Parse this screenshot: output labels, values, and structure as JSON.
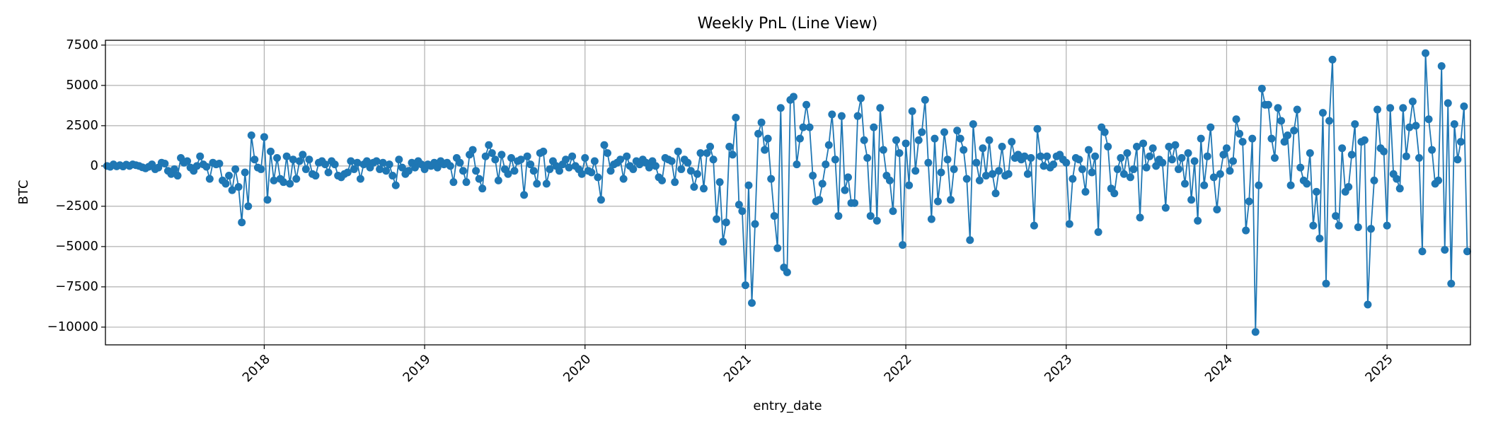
{
  "chart_data": {
    "type": "line",
    "title": "Weekly PnL (Line View)",
    "xlabel": "entry_date",
    "ylabel": "BTC",
    "color": "#1f77b4",
    "grid": true,
    "xlim": [
      2017.01,
      2025.52
    ],
    "xticks": [
      2018,
      2019,
      2020,
      2021,
      2022,
      2023,
      2024,
      2025
    ],
    "ylim": [
      -11100,
      7800
    ],
    "yticks": [
      {
        "value": -10000,
        "label": "−10000"
      },
      {
        "value": -7500,
        "label": "−7500"
      },
      {
        "value": -5000,
        "label": "−5000"
      },
      {
        "value": -2500,
        "label": "−2500"
      },
      0,
      2500,
      5000,
      7500
    ],
    "x": [
      2017.02,
      2017.04,
      2017.06,
      2017.08,
      2017.1,
      2017.12,
      2017.14,
      2017.16,
      2017.18,
      2017.2,
      2017.22,
      2017.24,
      2017.26,
      2017.28,
      2017.3,
      2017.32,
      2017.34,
      2017.36,
      2017.38,
      2017.4,
      2017.42,
      2017.44,
      2017.46,
      2017.48,
      2017.5,
      2017.52,
      2017.54,
      2017.56,
      2017.58,
      2017.6,
      2017.62,
      2017.64,
      2017.66,
      2017.68,
      2017.7,
      2017.72,
      2017.74,
      2017.76,
      2017.78,
      2017.8,
      2017.82,
      2017.84,
      2017.86,
      2017.88,
      2017.9,
      2017.92,
      2017.94,
      2017.96,
      2017.98,
      2018,
      2018.02,
      2018.04,
      2018.06,
      2018.08,
      2018.1,
      2018.12,
      2018.14,
      2018.16,
      2018.18,
      2018.2,
      2018.22,
      2018.24,
      2018.26,
      2018.28,
      2018.3,
      2018.32,
      2018.34,
      2018.36,
      2018.38,
      2018.4,
      2018.42,
      2018.44,
      2018.46,
      2018.48,
      2018.5,
      2018.52,
      2018.54,
      2018.56,
      2018.58,
      2018.6,
      2018.62,
      2018.64,
      2018.66,
      2018.68,
      2018.7,
      2018.72,
      2018.74,
      2018.76,
      2018.78,
      2018.8,
      2018.82,
      2018.84,
      2018.86,
      2018.88,
      2018.9,
      2018.92,
      2018.94,
      2018.96,
      2018.98,
      2019,
      2019.02,
      2019.04,
      2019.06,
      2019.08,
      2019.1,
      2019.12,
      2019.14,
      2019.16,
      2019.18,
      2019.2,
      2019.22,
      2019.24,
      2019.26,
      2019.28,
      2019.3,
      2019.32,
      2019.34,
      2019.36,
      2019.38,
      2019.4,
      2019.42,
      2019.44,
      2019.46,
      2019.48,
      2019.5,
      2019.52,
      2019.54,
      2019.56,
      2019.58,
      2019.6,
      2019.62,
      2019.64,
      2019.66,
      2019.68,
      2019.7,
      2019.72,
      2019.74,
      2019.76,
      2019.78,
      2019.8,
      2019.82,
      2019.84,
      2019.86,
      2019.88,
      2019.9,
      2019.92,
      2019.94,
      2019.96,
      2019.98,
      2020,
      2020.02,
      2020.04,
      2020.06,
      2020.08,
      2020.1,
      2020.12,
      2020.14,
      2020.16,
      2020.18,
      2020.2,
      2020.22,
      2020.24,
      2020.26,
      2020.28,
      2020.3,
      2020.32,
      2020.34,
      2020.36,
      2020.38,
      2020.4,
      2020.42,
      2020.44,
      2020.46,
      2020.48,
      2020.5,
      2020.52,
      2020.54,
      2020.56,
      2020.58,
      2020.6,
      2020.62,
      2020.64,
      2020.66,
      2020.68,
      2020.7,
      2020.72,
      2020.74,
      2020.76,
      2020.78,
      2020.8,
      2020.82,
      2020.84,
      2020.86,
      2020.88,
      2020.9,
      2020.92,
      2020.94,
      2020.96,
      2020.98,
      2021,
      2021.02,
      2021.04,
      2021.06,
      2021.08,
      2021.1,
      2021.12,
      2021.14,
      2021.16,
      2021.18,
      2021.2,
      2021.22,
      2021.24,
      2021.26,
      2021.28,
      2021.3,
      2021.32,
      2021.34,
      2021.36,
      2021.38,
      2021.4,
      2021.42,
      2021.44,
      2021.46,
      2021.48,
      2021.5,
      2021.52,
      2021.54,
      2021.56,
      2021.58,
      2021.6,
      2021.62,
      2021.64,
      2021.66,
      2021.68,
      2021.7,
      2021.72,
      2021.74,
      2021.76,
      2021.78,
      2021.8,
      2021.82,
      2021.84,
      2021.86,
      2021.88,
      2021.9,
      2021.92,
      2021.94,
      2021.96,
      2021.98,
      2022,
      2022.02,
      2022.04,
      2022.06,
      2022.08,
      2022.1,
      2022.12,
      2022.14,
      2022.16,
      2022.18,
      2022.2,
      2022.22,
      2022.24,
      2022.26,
      2022.28,
      2022.3,
      2022.32,
      2022.34,
      2022.36,
      2022.38,
      2022.4,
      2022.42,
      2022.44,
      2022.46,
      2022.48,
      2022.5,
      2022.52,
      2022.54,
      2022.56,
      2022.58,
      2022.6,
      2022.62,
      2022.64,
      2022.66,
      2022.68,
      2022.7,
      2022.72,
      2022.74,
      2022.76,
      2022.78,
      2022.8,
      2022.82,
      2022.84,
      2022.86,
      2022.88,
      2022.9,
      2022.92,
      2022.94,
      2022.96,
      2022.98,
      2023,
      2023.02,
      2023.04,
      2023.06,
      2023.08,
      2023.1,
      2023.12,
      2023.14,
      2023.16,
      2023.18,
      2023.2,
      2023.22,
      2023.24,
      2023.26,
      2023.28,
      2023.3,
      2023.32,
      2023.34,
      2023.36,
      2023.38,
      2023.4,
      2023.42,
      2023.44,
      2023.46,
      2023.48,
      2023.5,
      2023.52,
      2023.54,
      2023.56,
      2023.58,
      2023.6,
      2023.62,
      2023.64,
      2023.66,
      2023.68,
      2023.7,
      2023.72,
      2023.74,
      2023.76,
      2023.78,
      2023.8,
      2023.82,
      2023.84,
      2023.86,
      2023.88,
      2023.9,
      2023.92,
      2023.94,
      2023.96,
      2023.98,
      2024,
      2024.02,
      2024.04,
      2024.06,
      2024.08,
      2024.1,
      2024.12,
      2024.14,
      2024.16,
      2024.18,
      2024.2,
      2024.22,
      2024.24,
      2024.26,
      2024.28,
      2024.3,
      2024.32,
      2024.34,
      2024.36,
      2024.38,
      2024.4,
      2024.42,
      2024.44,
      2024.46,
      2024.48,
      2024.5,
      2024.52,
      2024.54,
      2024.56,
      2024.58,
      2024.6,
      2024.62,
      2024.64,
      2024.66,
      2024.68,
      2024.7,
      2024.72,
      2024.74,
      2024.76,
      2024.78,
      2024.8,
      2024.82,
      2024.84,
      2024.86,
      2024.88,
      2024.9,
      2024.92,
      2024.94,
      2024.96,
      2024.98,
      2025,
      2025.02,
      2025.04,
      2025.06,
      2025.08,
      2025.1,
      2025.12,
      2025.14,
      2025.16,
      2025.18,
      2025.2,
      2025.22,
      2025.24,
      2025.26,
      2025.28,
      2025.3,
      2025.32,
      2025.34,
      2025.36,
      2025.38,
      2025.4,
      2025.42,
      2025.44,
      2025.46,
      2025.48,
      2025.5
    ],
    "values": [
      0,
      -50,
      100,
      -20,
      50,
      -30,
      80,
      0,
      100,
      50,
      0,
      -80,
      -150,
      -50,
      100,
      -200,
      -100,
      200,
      150,
      -300,
      -500,
      -200,
      -600,
      500,
      200,
      300,
      -100,
      -300,
      0,
      600,
      100,
      -50,
      -800,
      200,
      100,
      150,
      -900,
      -1100,
      -600,
      -1500,
      -200,
      -1300,
      -3500,
      -400,
      -2500,
      1900,
      400,
      -100,
      -200,
      1800,
      -2100,
      900,
      -900,
      500,
      -800,
      -1000,
      600,
      -1100,
      400,
      -800,
      300,
      700,
      -200,
      400,
      -500,
      -600,
      200,
      300,
      100,
      -400,
      300,
      100,
      -600,
      -700,
      -500,
      -400,
      300,
      -200,
      200,
      -800,
      100,
      300,
      -100,
      200,
      300,
      -200,
      200,
      -300,
      100,
      -600,
      -1200,
      400,
      -100,
      -500,
      -300,
      200,
      -100,
      300,
      100,
      -200,
      100,
      0,
      200,
      -100,
      300,
      100,
      200,
      0,
      -1000,
      500,
      200,
      -300,
      -1000,
      700,
      1000,
      -300,
      -800,
      -1400,
      600,
      1300,
      800,
      400,
      -900,
      700,
      -200,
      -500,
      500,
      -300,
      300,
      400,
      -1800,
      600,
      100,
      -300,
      -1100,
      800,
      900,
      -1100,
      -200,
      300,
      0,
      -300,
      100,
      400,
      -100,
      600,
      0,
      -200,
      -500,
      500,
      -300,
      -400,
      300,
      -700,
      -2100,
      1300,
      800,
      -300,
      100,
      200,
      400,
      -800,
      600,
      0,
      -200,
      300,
      100,
      400,
      200,
      -100,
      300,
      0,
      -700,
      -900,
      500,
      400,
      300,
      -1000,
      900,
      -200,
      400,
      200,
      -300,
      -1300,
      -500,
      800,
      -1400,
      800,
      1200,
      400,
      -3300,
      -1000,
      -4700,
      -3500,
      1200,
      700,
      3000,
      -2400,
      -2800,
      -7400,
      -1200,
      -8500,
      -3600,
      2000,
      2700,
      1000,
      1700,
      -800,
      -3100,
      -5100,
      3600,
      -6300,
      -6600,
      4100,
      4300,
      100,
      1700,
      2400,
      3800,
      2400,
      -600,
      -2200,
      -2100,
      -1100,
      100,
      1300,
      3200,
      400,
      -3100,
      3100,
      -1500,
      -700,
      -2300,
      -2300,
      3100,
      4200,
      1600,
      500,
      -3100,
      2400,
      -3400,
      3600,
      1000,
      -600,
      -900,
      -2800,
      1600,
      800,
      -4900,
      1400,
      -1200,
      3400,
      -300,
      1600,
      2100,
      4100,
      200,
      -3300,
      1700,
      -2200,
      -400,
      2100,
      400,
      -2100,
      -200,
      2200,
      1700,
      1000,
      -800,
      -4600,
      2600,
      200,
      -900,
      1100,
      -600,
      1600,
      -500,
      -1700,
      -300,
      1200,
      -600,
      -500,
      1500,
      500,
      700,
      400,
      600,
      -500,
      500,
      -3700,
      2300,
      600,
      0,
      600,
      -100,
      100,
      600,
      700,
      400,
      200,
      -3600,
      -800,
      500,
      400,
      -200,
      -1600,
      1000,
      -400,
      600,
      -4100,
      2400,
      2100,
      1200,
      -1400,
      -1700,
      -200,
      500,
      -500,
      800,
      -700,
      -200,
      1200,
      -3200,
      1400,
      -100,
      600,
      1100,
      0,
      400,
      200,
      -2600,
      1200,
      400,
      1300,
      -200,
      500,
      -1100,
      800,
      -2100,
      300,
      -3400,
      1700,
      -1200,
      600,
      2400,
      -700,
      -2700,
      -500,
      700,
      1100,
      -300,
      300,
      2900,
      2000,
      1500,
      -4000,
      -2200,
      1700,
      -10300,
      -1200,
      4800,
      3800,
      3800,
      1700,
      500,
      3600,
      2800,
      1500,
      1900,
      -1200,
      2200,
      3500,
      -100,
      -900,
      -1100,
      800,
      -3700,
      -1600,
      -4500,
      3300,
      -7300,
      2800,
      6600,
      -3100,
      -3700,
      1100,
      -1600,
      -1300,
      700,
      2600,
      -3800,
      1500,
      1600,
      -8600,
      -3900,
      -900,
      3500,
      1100,
      900,
      -3700,
      3600,
      -500,
      -800,
      -1400,
      3600,
      600,
      2400,
      4000,
      2500,
      500,
      -5300,
      7000,
      2900,
      1000,
      -1100,
      -900,
      6200,
      -5200,
      3900,
      -7300,
      2600,
      400,
      1500,
      3700,
      -5300
    ]
  }
}
